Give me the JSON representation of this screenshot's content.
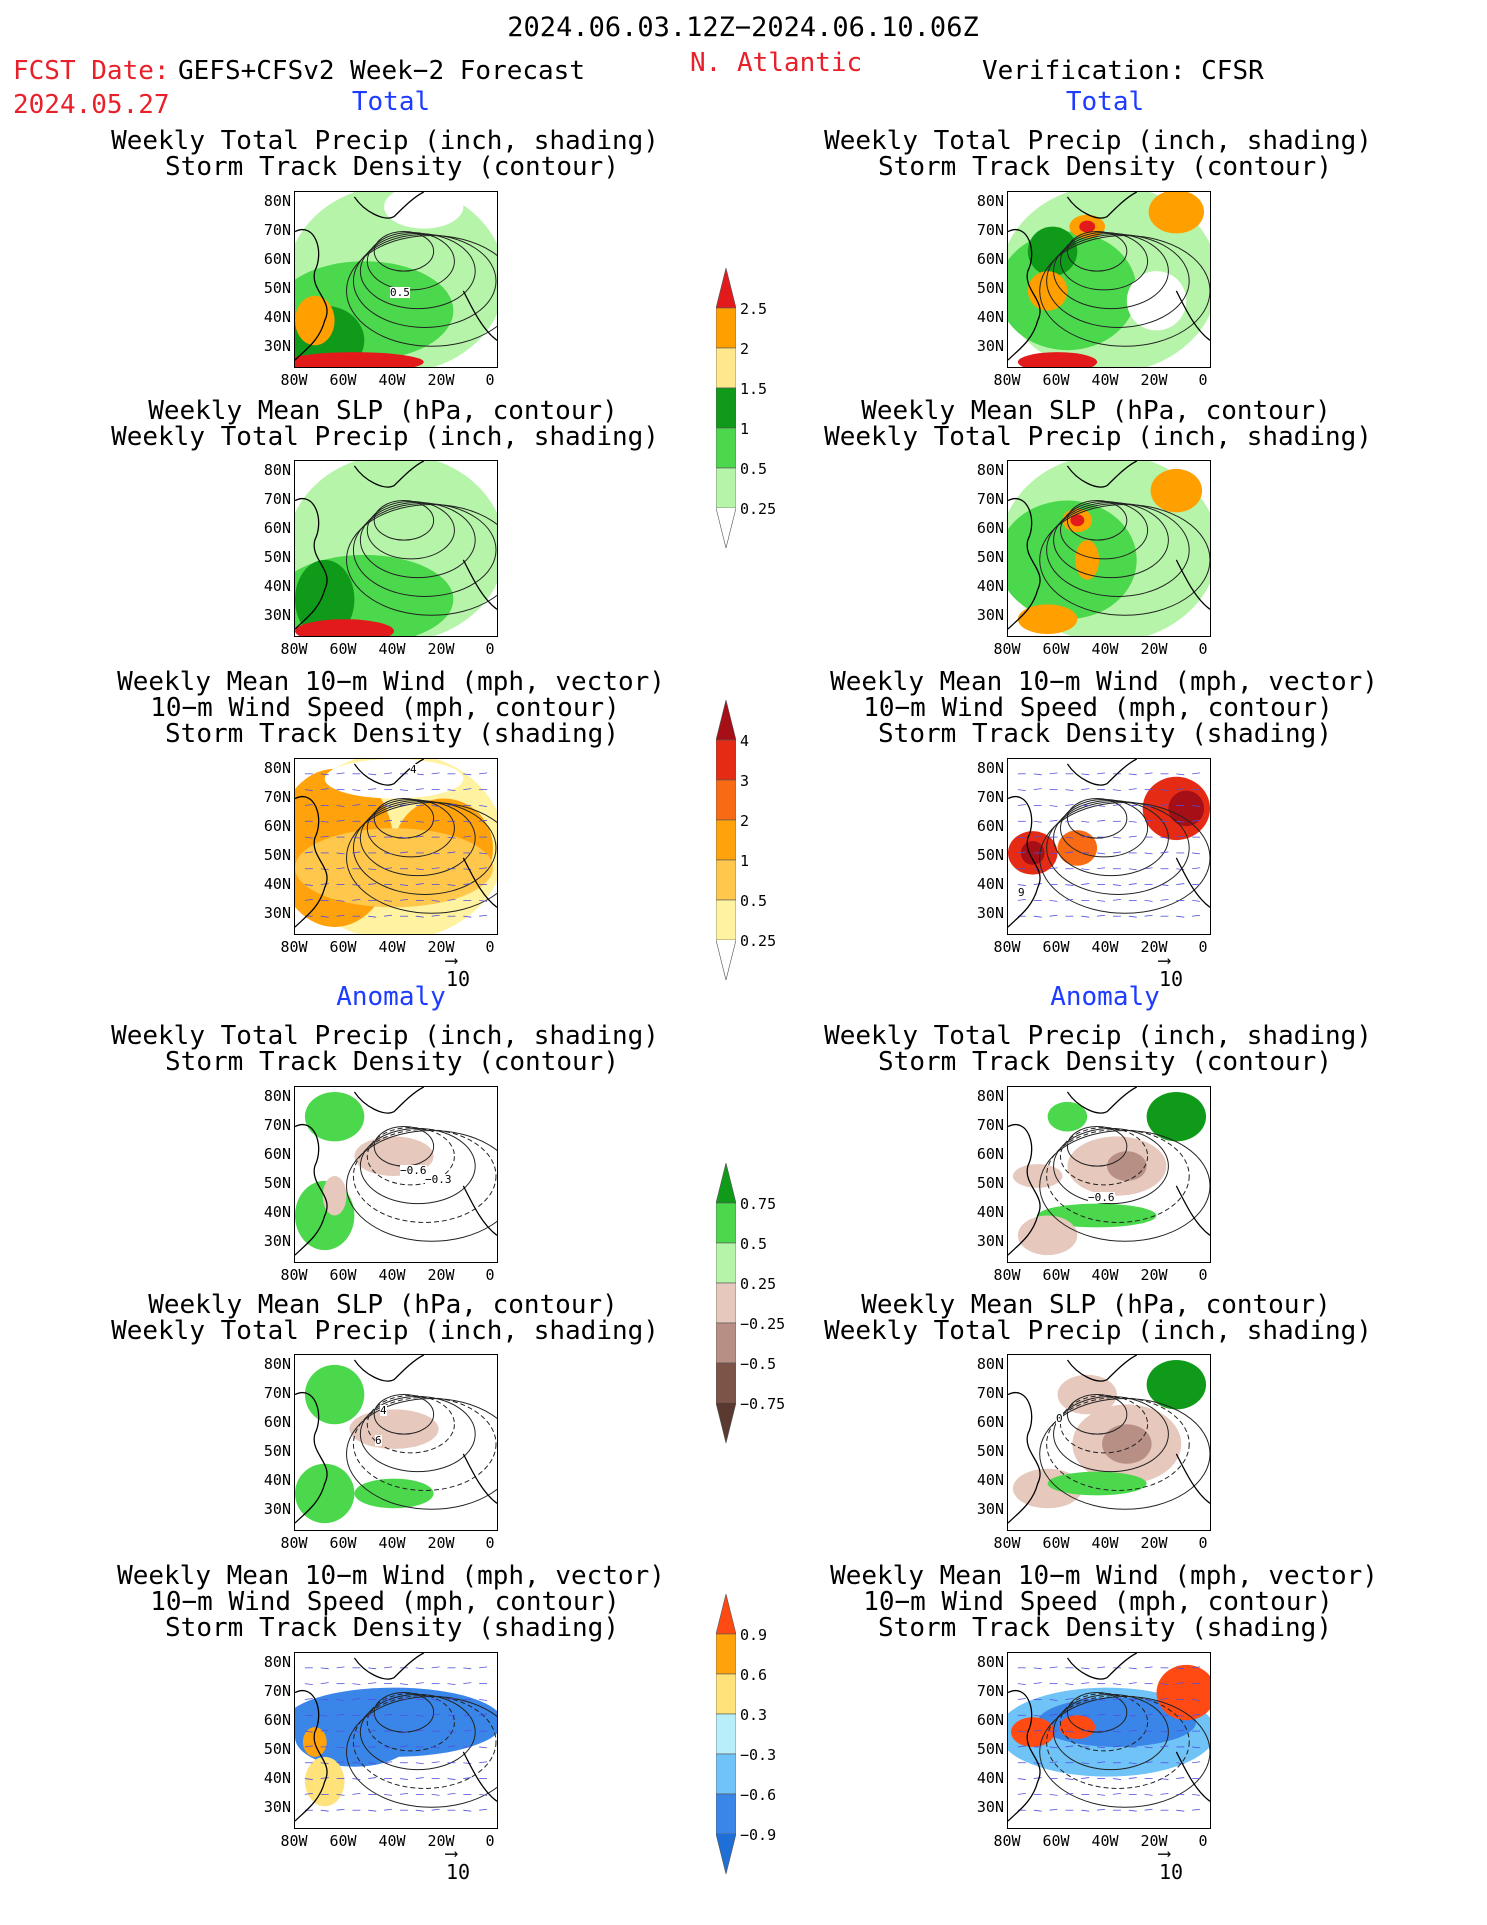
{
  "header": {
    "period": "2024.06.03.12Z−2024.06.10.06Z",
    "fcst_date_label": "FCST Date:",
    "fcst_date": "2024.05.27",
    "model": "GEFS+CFSv2 Week−2 Forecast",
    "region": "N. Atlantic",
    "verification": "Verification: CFSR"
  },
  "sections": {
    "total": "Total",
    "anomaly": "Anomaly"
  },
  "titles": {
    "precip_a": "Weekly Total Precip (inch, shading)",
    "storm_b": "Storm Track Density (contour)",
    "slp_a": "Weekly Mean SLP (hPa, contour)",
    "precip_b": "Weekly Total Precip (inch, shading)",
    "wind_a": "Weekly Mean 10−m Wind (mph, vector)",
    "wind_b": "10−m Wind Speed (mph, contour)",
    "storm_c": "Storm Track Density (shading)"
  },
  "axes": {
    "lat_labels": [
      "80N",
      "70N",
      "60N",
      "50N",
      "40N",
      "30N"
    ],
    "lon_labels": [
      "80W",
      "60W",
      "40W",
      "20W",
      "0"
    ]
  },
  "vector_ref": "10",
  "contour_labels": {
    "fc_precip_total": "0.5",
    "fc_precip_anom_1": "−0.3",
    "fc_precip_anom_2": "−0.6",
    "obs_precip_anom": "−0.6",
    "fc_slp_anom_1": "4",
    "fc_slp_anom_2": "6",
    "obs_slp_anom": "0",
    "obs_wind_total": "9",
    "fc_wind_total": "4"
  },
  "colorbars": {
    "precip_total": {
      "labels": [
        "2.5",
        "2",
        "1.5",
        "1",
        "0.5",
        "0.25"
      ],
      "colors": [
        "#e31a1c",
        "#ff9f00",
        "#fee88b",
        "#109a1a",
        "#4cd84c",
        "#b6f5a9"
      ]
    },
    "storm_total": {
      "labels": [
        "4",
        "3",
        "2",
        "1",
        "0.5",
        "0.25"
      ],
      "colors": [
        "#a50f15",
        "#e52b14",
        "#f86a14",
        "#ffa20b",
        "#ffc84d",
        "#fff2a0"
      ]
    },
    "precip_anom": {
      "labels": [
        "0.75",
        "0.5",
        "0.25",
        "−0.25",
        "−0.5",
        "−0.75"
      ],
      "colors": [
        "#109a1a",
        "#4cd84c",
        "#b6f5a9",
        "#e6c8bd",
        "#b88f84",
        "#7d5448"
      ]
    },
    "storm_anom": {
      "labels": [
        "0.9",
        "0.6",
        "0.3",
        "−0.3",
        "−0.6",
        "−0.9"
      ],
      "colors": [
        "#ff4a14",
        "#ffa20b",
        "#ffe27a",
        "#b7eef9",
        "#6fc3f7",
        "#3a86e8"
      ]
    }
  },
  "colors": {
    "header_red": "#e8202a",
    "section_blue": "#1e3cff"
  }
}
